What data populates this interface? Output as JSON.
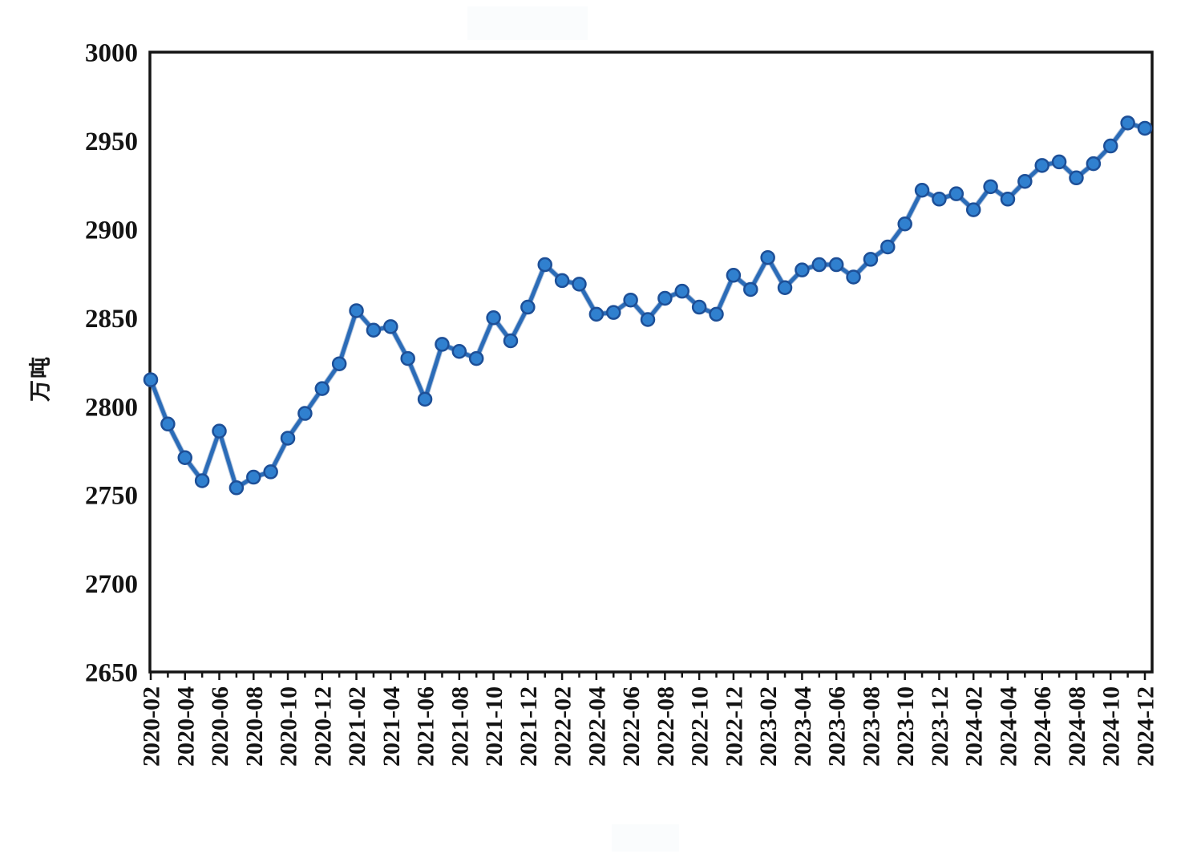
{
  "figure": {
    "ylabel": "万吨",
    "background": "#ffffff"
  },
  "chart_data": {
    "type": "line",
    "title": "",
    "ylabel": "万吨",
    "xlabel": "",
    "ylim": [
      2650,
      3000
    ],
    "yticks": [
      2650,
      2700,
      2750,
      2800,
      2850,
      2900,
      2950,
      3000
    ],
    "x_label_every": 2,
    "grid": false,
    "legend": "none",
    "line_color": "#2b6cb8",
    "marker_color": "#3080cf",
    "marker_edge_color": "#1d4f97",
    "axis_color": "#141414",
    "x": [
      "2020-02",
      "2020-03",
      "2020-04",
      "2020-05",
      "2020-06",
      "2020-07",
      "2020-08",
      "2020-09",
      "2020-10",
      "2020-11",
      "2020-12",
      "2021-01",
      "2021-02",
      "2021-03",
      "2021-04",
      "2021-05",
      "2021-06",
      "2021-07",
      "2021-08",
      "2021-09",
      "2021-10",
      "2021-11",
      "2021-12",
      "2022-01",
      "2022-02",
      "2022-03",
      "2022-04",
      "2022-05",
      "2022-06",
      "2022-07",
      "2022-08",
      "2022-09",
      "2022-10",
      "2022-11",
      "2022-12",
      "2023-01",
      "2023-02",
      "2023-03",
      "2023-04",
      "2023-05",
      "2023-06",
      "2023-07",
      "2023-08",
      "2023-09",
      "2023-10",
      "2023-11",
      "2023-12",
      "2024-01",
      "2024-02",
      "2024-03",
      "2024-04",
      "2024-05",
      "2024-06",
      "2024-07",
      "2024-08",
      "2024-09",
      "2024-10",
      "2024-11",
      "2024-12"
    ],
    "values": [
      2815,
      2790,
      2771,
      2758,
      2786,
      2754,
      2760,
      2763,
      2782,
      2796,
      2810,
      2824,
      2854,
      2843,
      2845,
      2827,
      2804,
      2835,
      2831,
      2827,
      2850,
      2837,
      2856,
      2880,
      2871,
      2869,
      2852,
      2853,
      2860,
      2849,
      2861,
      2865,
      2856,
      2852,
      2874,
      2866,
      2884,
      2867,
      2877,
      2880,
      2880,
      2873,
      2883,
      2890,
      2903,
      2922,
      2917,
      2920,
      2911,
      2924,
      2917,
      2927,
      2936,
      2938,
      2929,
      2937,
      2947,
      2960,
      2957
    ]
  }
}
